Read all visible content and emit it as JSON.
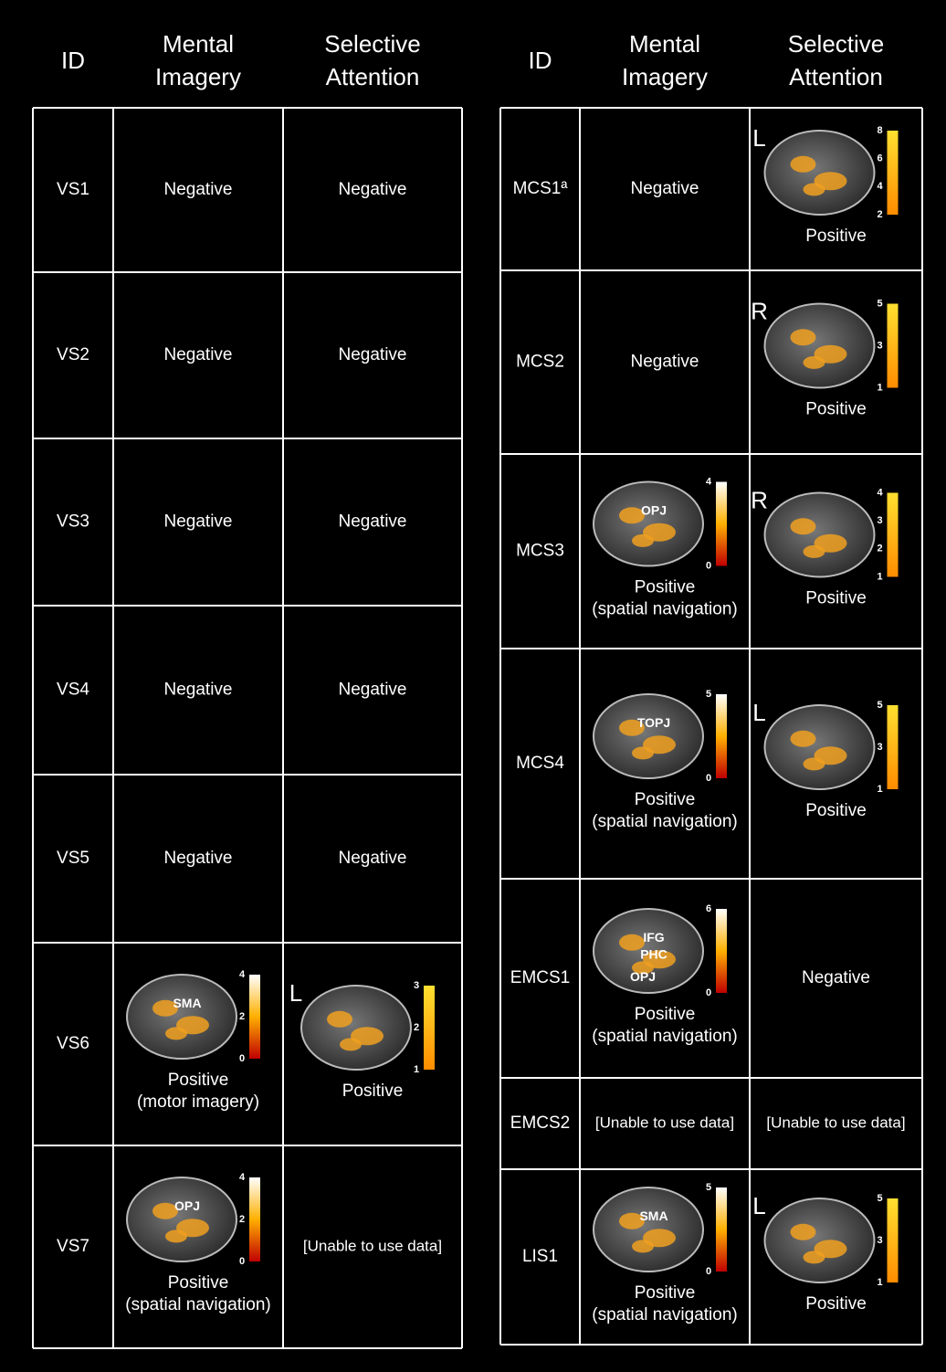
{
  "tables": [
    {
      "headers": [
        [
          "ID"
        ],
        [
          "Mental",
          "Imagery"
        ],
        [
          "Selective",
          "Attention"
        ]
      ],
      "rows": [
        {
          "id": "VS1",
          "mental_imagery": {
            "lines": [
              "Negative"
            ]
          },
          "selective_attention": {
            "lines": [
              "Negative"
            ]
          }
        },
        {
          "id": "VS2",
          "mental_imagery": {
            "lines": [
              "Negative"
            ]
          },
          "selective_attention": {
            "lines": [
              "Negative"
            ]
          }
        },
        {
          "id": "VS3",
          "mental_imagery": {
            "lines": [
              "Negative"
            ]
          },
          "selective_attention": {
            "lines": [
              "Negative"
            ]
          }
        },
        {
          "id": "VS4",
          "mental_imagery": {
            "lines": [
              "Negative"
            ]
          },
          "selective_attention": {
            "lines": [
              "Negative"
            ]
          }
        },
        {
          "id": "VS5",
          "mental_imagery": {
            "lines": [
              "Negative"
            ]
          },
          "selective_attention": {
            "lines": [
              "Negative"
            ]
          }
        },
        {
          "id": "VS6",
          "mental_imagery": {
            "lines": [
              "Positive",
              "(motor imagery)"
            ],
            "image": {
              "labels": [
                "SMA"
              ],
              "scale": [
                0,
                2,
                4
              ],
              "colormap": "hot"
            }
          },
          "selective_attention": {
            "lines": [
              "Positive"
            ],
            "image": {
              "side": "L",
              "scale": [
                1,
                2,
                3
              ],
              "colormap": "autumn"
            }
          }
        },
        {
          "id": "VS7",
          "mental_imagery": {
            "lines": [
              "Positive",
              "(spatial navigation)"
            ],
            "image": {
              "labels": [
                "OPJ"
              ],
              "scale": [
                0,
                2,
                4
              ],
              "colormap": "hot"
            }
          },
          "selective_attention": {
            "lines": [
              "[Unable to use data]"
            ]
          }
        }
      ]
    },
    {
      "headers": [
        [
          "ID"
        ],
        [
          "Mental",
          "Imagery"
        ],
        [
          "Selective",
          "Attention"
        ]
      ],
      "rows": [
        {
          "id": "MCS1ª",
          "mental_imagery": {
            "lines": [
              "Negative"
            ]
          },
          "selective_attention": {
            "lines": [
              "Positive"
            ],
            "image": {
              "side": "L",
              "scale": [
                2,
                4,
                6,
                8
              ],
              "colormap": "autumn"
            }
          }
        },
        {
          "id": "MCS2",
          "mental_imagery": {
            "lines": [
              "Negative"
            ]
          },
          "selective_attention": {
            "lines": [
              "Positive"
            ],
            "image": {
              "side": "R",
              "scale": [
                1,
                3,
                5
              ],
              "colormap": "autumn"
            }
          }
        },
        {
          "id": "MCS3",
          "mental_imagery": {
            "lines": [
              "Positive",
              "(spatial navigation)"
            ],
            "image": {
              "labels": [
                "OPJ"
              ],
              "scale": [
                0,
                4
              ],
              "colormap": "hot"
            }
          },
          "selective_attention": {
            "lines": [
              "Positive"
            ],
            "image": {
              "side": "R",
              "scale": [
                1,
                2,
                3,
                4
              ],
              "colormap": "autumn"
            }
          }
        },
        {
          "id": "MCS4",
          "mental_imagery": {
            "lines": [
              "Positive",
              "(spatial navigation)"
            ],
            "image": {
              "labels": [
                "TOPJ"
              ],
              "scale": [
                0,
                5
              ],
              "colormap": "hot"
            }
          },
          "selective_attention": {
            "lines": [
              "Positive"
            ],
            "image": {
              "side": "L",
              "scale": [
                1,
                3,
                5
              ],
              "colormap": "autumn"
            }
          }
        },
        {
          "id": "EMCS1",
          "mental_imagery": {
            "lines": [
              "Positive",
              "(spatial navigation)"
            ],
            "image": {
              "labels": [
                "IFG",
                "PHC",
                "OPJ"
              ],
              "scale": [
                0,
                6
              ],
              "colormap": "hot"
            }
          },
          "selective_attention": {
            "lines": [
              "Negative"
            ]
          }
        },
        {
          "id": "EMCS2",
          "mental_imagery": {
            "lines": [
              "[Unable to use data]"
            ]
          },
          "selective_attention": {
            "lines": [
              "[Unable to use data]"
            ]
          }
        },
        {
          "id": "LIS1",
          "mental_imagery": {
            "lines": [
              "Positive",
              "(spatial navigation)"
            ],
            "image": {
              "labels": [
                "SMA"
              ],
              "scale": [
                0,
                5
              ],
              "colormap": "hot"
            }
          },
          "selective_attention": {
            "lines": [
              "Positive"
            ],
            "image": {
              "side": "L",
              "scale": [
                1,
                3,
                5
              ],
              "colormap": "autumn"
            }
          }
        }
      ]
    }
  ]
}
